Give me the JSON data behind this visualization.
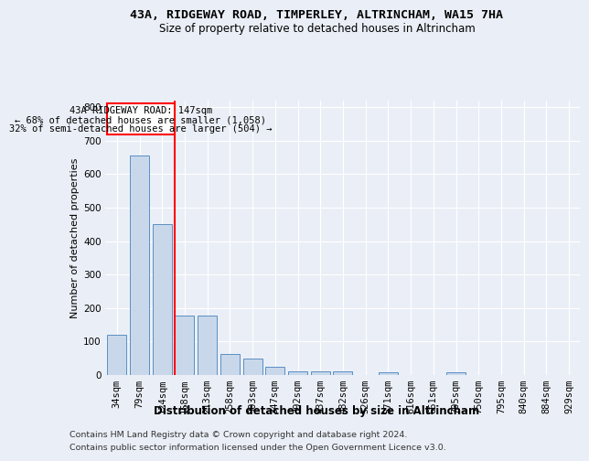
{
  "title1": "43A, RIDGEWAY ROAD, TIMPERLEY, ALTRINCHAM, WA15 7HA",
  "title2": "Size of property relative to detached houses in Altrincham",
  "xlabel": "Distribution of detached houses by size in Altrincham",
  "ylabel": "Number of detached properties",
  "categories": [
    "34sqm",
    "79sqm",
    "124sqm",
    "168sqm",
    "213sqm",
    "258sqm",
    "303sqm",
    "347sqm",
    "392sqm",
    "437sqm",
    "482sqm",
    "526sqm",
    "571sqm",
    "616sqm",
    "661sqm",
    "705sqm",
    "750sqm",
    "795sqm",
    "840sqm",
    "884sqm",
    "929sqm"
  ],
  "values": [
    120,
    655,
    450,
    178,
    178,
    62,
    48,
    25,
    10,
    12,
    12,
    0,
    7,
    0,
    0,
    7,
    0,
    0,
    0,
    0,
    0
  ],
  "bar_color": "#c8d8ea",
  "bar_edge_color": "#5b8ec4",
  "red_line_index": 2.55,
  "ylim": [
    0,
    820
  ],
  "yticks": [
    0,
    100,
    200,
    300,
    400,
    500,
    600,
    700,
    800
  ],
  "annotation_line1": "43A RIDGEWAY ROAD: 147sqm",
  "annotation_line2": "← 68% of detached houses are smaller (1,058)",
  "annotation_line3": "32% of semi-detached houses are larger (504) →",
  "footnote1": "Contains HM Land Registry data © Crown copyright and database right 2024.",
  "footnote2": "Contains public sector information licensed under the Open Government Licence v3.0.",
  "background_color": "#eaeff7",
  "plot_bg_color": "#eaeff7",
  "title1_fontsize": 9.5,
  "title2_fontsize": 8.5,
  "xlabel_fontsize": 8.5,
  "ylabel_fontsize": 8,
  "tick_fontsize": 7.5,
  "annotation_fontsize": 7.5,
  "footnote_fontsize": 6.8
}
